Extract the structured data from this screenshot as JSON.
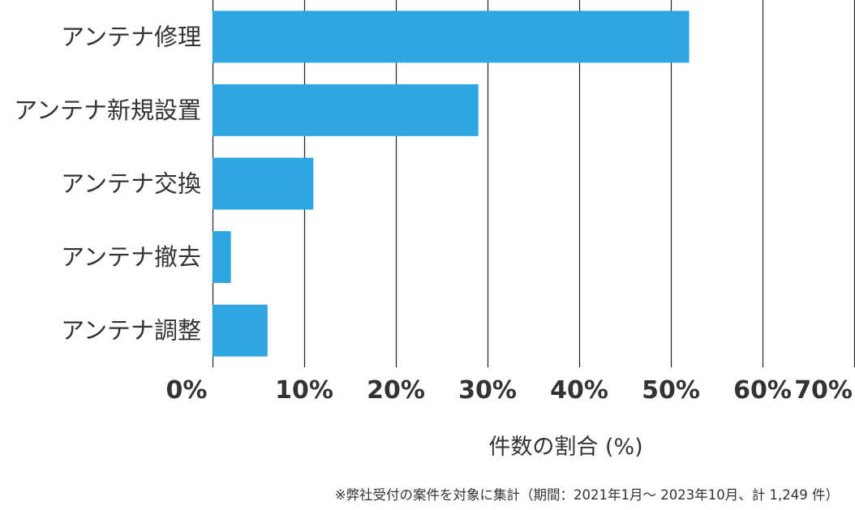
{
  "chart_data": {
    "type": "bar",
    "orientation": "horizontal",
    "categories": [
      "アンテナ修理",
      "アンテナ新規設置",
      "アンテナ交換",
      "アンテナ撤去",
      "アンテナ調整"
    ],
    "values": [
      52,
      29,
      11,
      2,
      6
    ],
    "xlabel": "件数の割合 (%)",
    "ylabel": "",
    "xlim": [
      0,
      70
    ],
    "xticks": [
      0,
      10,
      20,
      30,
      40,
      50,
      60,
      70
    ],
    "xtick_labels": [
      "0%",
      "10%",
      "20%",
      "30%",
      "40%",
      "50%",
      "60%",
      "70%"
    ],
    "grid": "vertical",
    "bar_color": "#2ea7e0"
  },
  "footnote": "※弊社受付の案件を対象に集計（期間：2021年1月～ 2023年10月、計 1,249 件）"
}
